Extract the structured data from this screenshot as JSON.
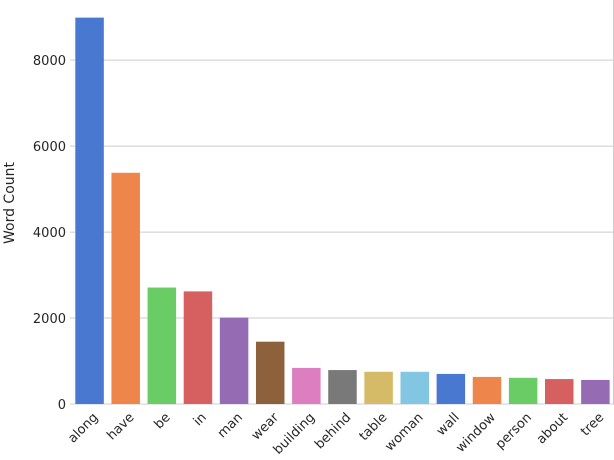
{
  "chart_data": {
    "type": "bar",
    "title": "",
    "xlabel": "",
    "ylabel": "Word Count",
    "categories": [
      "along",
      "have",
      "be",
      "in",
      "man",
      "wear",
      "building",
      "behind",
      "table",
      "woman",
      "wall",
      "window",
      "person",
      "about",
      "tree"
    ],
    "values": [
      8990,
      5380,
      2710,
      2620,
      2010,
      1450,
      840,
      790,
      750,
      750,
      700,
      630,
      610,
      580,
      560
    ],
    "colors": [
      "#4878d0",
      "#ee854a",
      "#6acc64",
      "#d65f5f",
      "#956cb4",
      "#8c613c",
      "#dc7ec0",
      "#797979",
      "#d5bb67",
      "#82c6e2",
      "#4878d0",
      "#ee854a",
      "#6acc64",
      "#d65f5f",
      "#956cb4"
    ],
    "ylim": [
      0,
      9400
    ],
    "yticks": [
      0,
      2000,
      4000,
      6000,
      8000
    ],
    "ytick_labels": [
      "0",
      "2000",
      "4000",
      "6000",
      "8000"
    ],
    "grid": "horizontal",
    "grid_color": "#cccccc",
    "background": "#ffffff",
    "legend": "none"
  }
}
